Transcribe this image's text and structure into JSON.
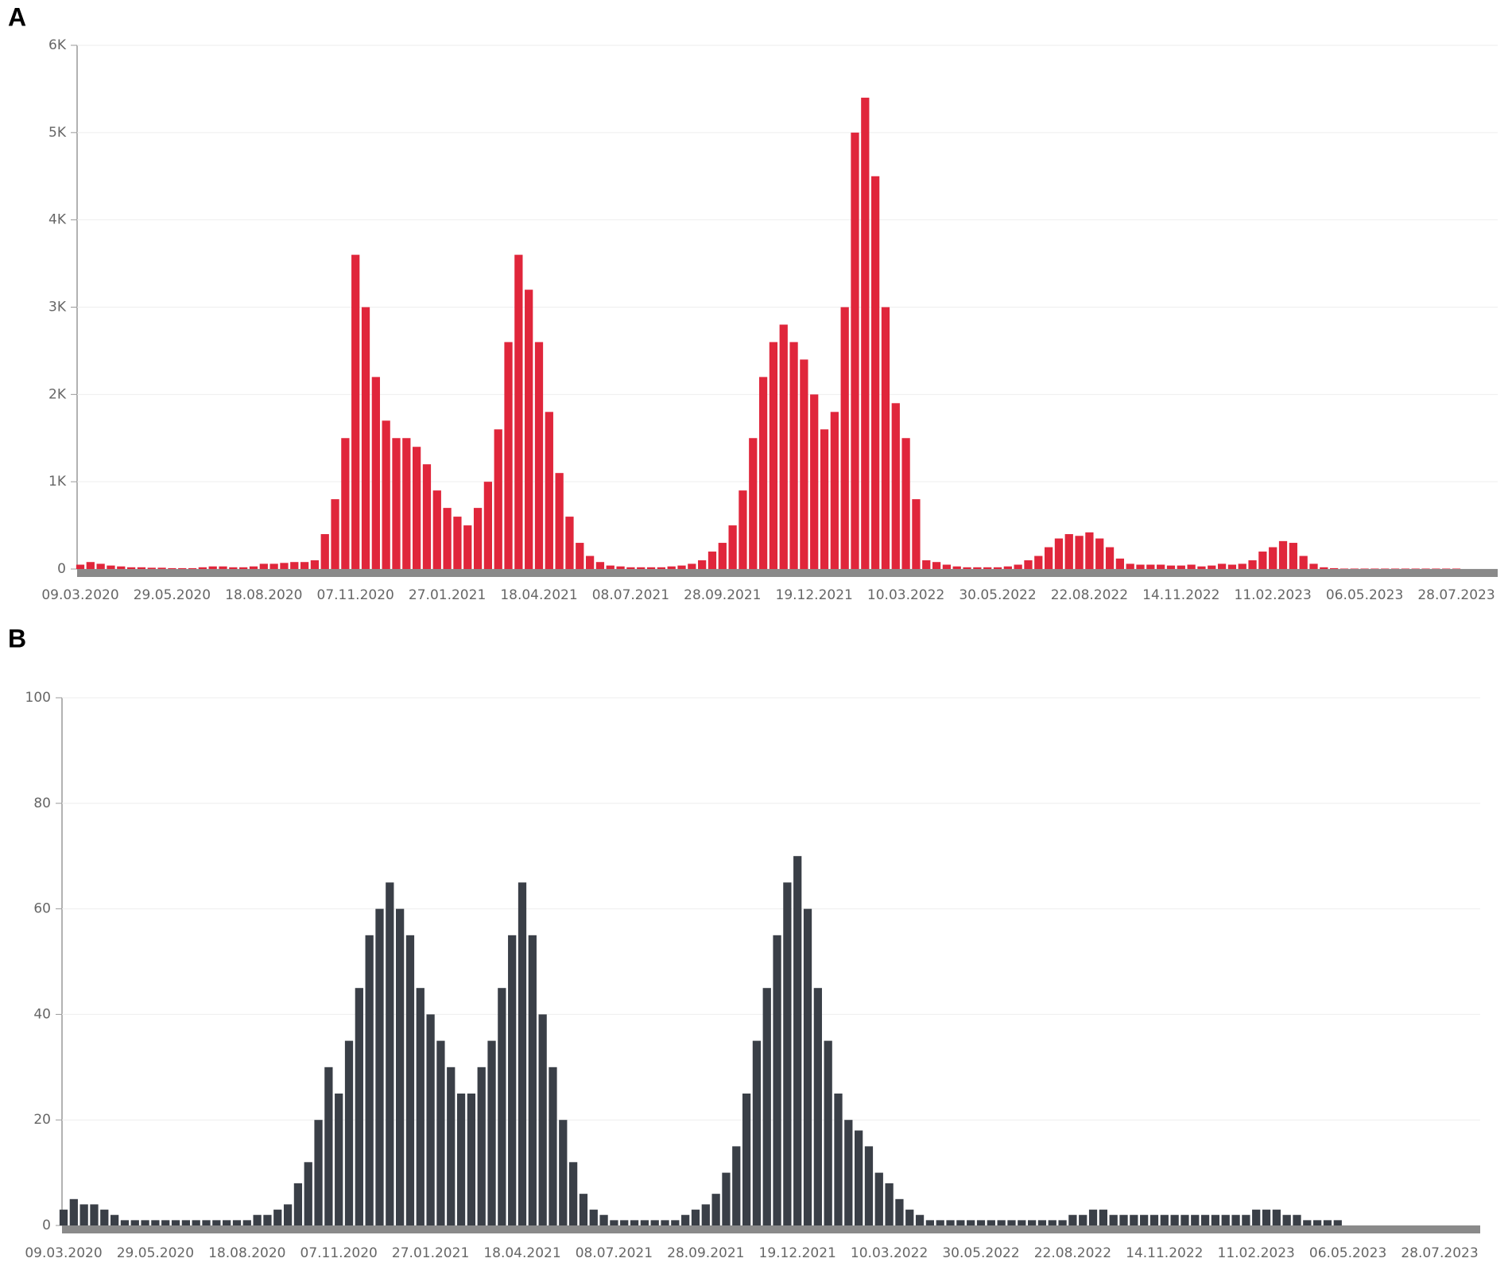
{
  "chart_data": [
    {
      "type": "bar",
      "title": "A",
      "color": "#e0263b",
      "grid": true,
      "categories": [
        "09.03.2020",
        null,
        null,
        null,
        null,
        null,
        null,
        null,
        null,
        "29.05.2020",
        null,
        null,
        null,
        null,
        null,
        null,
        null,
        null,
        "18.08.2020",
        null,
        null,
        null,
        null,
        null,
        null,
        null,
        null,
        "07.11.2020",
        null,
        null,
        null,
        null,
        null,
        null,
        null,
        null,
        "27.01.2021",
        null,
        null,
        null,
        null,
        null,
        null,
        null,
        null,
        "18.04.2021",
        null,
        null,
        null,
        null,
        null,
        null,
        null,
        null,
        "08.07.2021",
        null,
        null,
        null,
        null,
        null,
        null,
        null,
        null,
        "28.09.2021",
        null,
        null,
        null,
        null,
        null,
        null,
        null,
        null,
        "19.12.2021",
        null,
        null,
        null,
        null,
        null,
        null,
        null,
        null,
        "10.03.2022",
        null,
        null,
        null,
        null,
        null,
        null,
        null,
        null,
        "30.05.2022",
        null,
        null,
        null,
        null,
        null,
        null,
        null,
        null,
        "22.08.2022",
        null,
        null,
        null,
        null,
        null,
        null,
        null,
        null,
        "14.11.2022",
        null,
        null,
        null,
        null,
        null,
        null,
        null,
        null,
        "11.02.2023",
        null,
        null,
        null,
        null,
        null,
        null,
        null,
        null,
        "06.05.2023",
        null,
        null,
        null,
        null,
        null,
        null,
        null,
        null,
        "28.07.2023"
      ],
      "values": [
        50,
        80,
        60,
        40,
        30,
        20,
        20,
        15,
        15,
        10,
        10,
        10,
        20,
        30,
        30,
        20,
        20,
        30,
        60,
        60,
        70,
        80,
        80,
        100,
        400,
        800,
        1500,
        3600,
        3000,
        2200,
        1700,
        1500,
        1500,
        1400,
        1200,
        900,
        700,
        600,
        500,
        700,
        1000,
        1600,
        2600,
        3600,
        3200,
        2600,
        1800,
        1100,
        600,
        300,
        150,
        80,
        40,
        30,
        20,
        20,
        20,
        20,
        30,
        40,
        60,
        100,
        200,
        300,
        500,
        900,
        1500,
        2200,
        2600,
        2800,
        2600,
        2400,
        2000,
        1600,
        1800,
        3000,
        5000,
        5400,
        4500,
        3000,
        1900,
        1500,
        800,
        100,
        80,
        50,
        30,
        20,
        20,
        20,
        20,
        30,
        50,
        100,
        150,
        250,
        350,
        400,
        380,
        420,
        350,
        250,
        120,
        60,
        50,
        50,
        50,
        40,
        40,
        50,
        30,
        40,
        60,
        50,
        60,
        100,
        200,
        250,
        320,
        300,
        150,
        60,
        20,
        10,
        5,
        5,
        5,
        5,
        5,
        5,
        5,
        5,
        5,
        5,
        5,
        5
      ],
      "ylim": [
        0,
        6000
      ],
      "yticks": [
        0,
        {
          "value": 1000,
          "label": "1K"
        },
        {
          "value": 2000,
          "label": "2K"
        },
        {
          "value": 3000,
          "label": "3K"
        },
        {
          "value": 4000,
          "label": "4K"
        },
        {
          "value": 5000,
          "label": "5K"
        },
        {
          "value": 6000,
          "label": "6K"
        }
      ]
    },
    {
      "type": "bar",
      "title": "B",
      "color": "#3a3f47",
      "grid": true,
      "categories": [
        "09.03.2020",
        null,
        null,
        null,
        null,
        null,
        null,
        null,
        null,
        "29.05.2020",
        null,
        null,
        null,
        null,
        null,
        null,
        null,
        null,
        "18.08.2020",
        null,
        null,
        null,
        null,
        null,
        null,
        null,
        null,
        "07.11.2020",
        null,
        null,
        null,
        null,
        null,
        null,
        null,
        null,
        "27.01.2021",
        null,
        null,
        null,
        null,
        null,
        null,
        null,
        null,
        "18.04.2021",
        null,
        null,
        null,
        null,
        null,
        null,
        null,
        null,
        "08.07.2021",
        null,
        null,
        null,
        null,
        null,
        null,
        null,
        null,
        "28.09.2021",
        null,
        null,
        null,
        null,
        null,
        null,
        null,
        null,
        "19.12.2021",
        null,
        null,
        null,
        null,
        null,
        null,
        null,
        null,
        "10.03.2022",
        null,
        null,
        null,
        null,
        null,
        null,
        null,
        null,
        "30.05.2022",
        null,
        null,
        null,
        null,
        null,
        null,
        null,
        null,
        "22.08.2022",
        null,
        null,
        null,
        null,
        null,
        null,
        null,
        null,
        "14.11.2022",
        null,
        null,
        null,
        null,
        null,
        null,
        null,
        null,
        "11.02.2023",
        null,
        null,
        null,
        null,
        null,
        null,
        null,
        null,
        "06.05.2023",
        null,
        null,
        null,
        null,
        null,
        null,
        null,
        null,
        "28.07.2023"
      ],
      "values": [
        3,
        5,
        4,
        4,
        3,
        2,
        1,
        1,
        1,
        1,
        1,
        1,
        1,
        1,
        1,
        1,
        1,
        1,
        1,
        2,
        2,
        3,
        4,
        8,
        12,
        20,
        30,
        25,
        35,
        45,
        55,
        60,
        65,
        60,
        55,
        45,
        40,
        35,
        30,
        25,
        25,
        30,
        35,
        45,
        55,
        65,
        55,
        40,
        30,
        20,
        12,
        6,
        3,
        2,
        1,
        1,
        1,
        1,
        1,
        1,
        1,
        2,
        3,
        4,
        6,
        10,
        15,
        25,
        35,
        45,
        55,
        65,
        70,
        60,
        45,
        35,
        25,
        20,
        18,
        15,
        10,
        8,
        5,
        3,
        2,
        1,
        1,
        1,
        1,
        1,
        1,
        1,
        1,
        1,
        1,
        1,
        1,
        1,
        1,
        2,
        2,
        3,
        3,
        2,
        2,
        2,
        2,
        2,
        2,
        2,
        2,
        2,
        2,
        2,
        2,
        2,
        2,
        3,
        3,
        3,
        2,
        2,
        1,
        1,
        1,
        1,
        0,
        0,
        0,
        0,
        0,
        0,
        0,
        0,
        0,
        0
      ],
      "ylim": [
        0,
        100
      ],
      "yticks": [
        0,
        20,
        40,
        60,
        80,
        100
      ]
    }
  ]
}
